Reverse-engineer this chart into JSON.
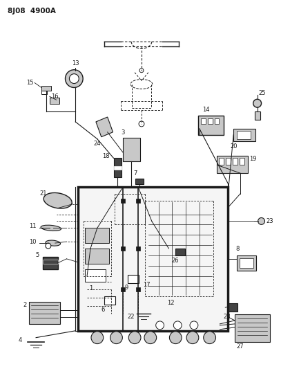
{
  "title": "8J08  4900A",
  "bg_color": "#ffffff",
  "lc": "#1a1a1a",
  "fig_width": 4.07,
  "fig_height": 5.33,
  "dpi": 100,
  "gray_light": "#c8c8c8",
  "gray_mid": "#888888",
  "gray_dark": "#444444"
}
